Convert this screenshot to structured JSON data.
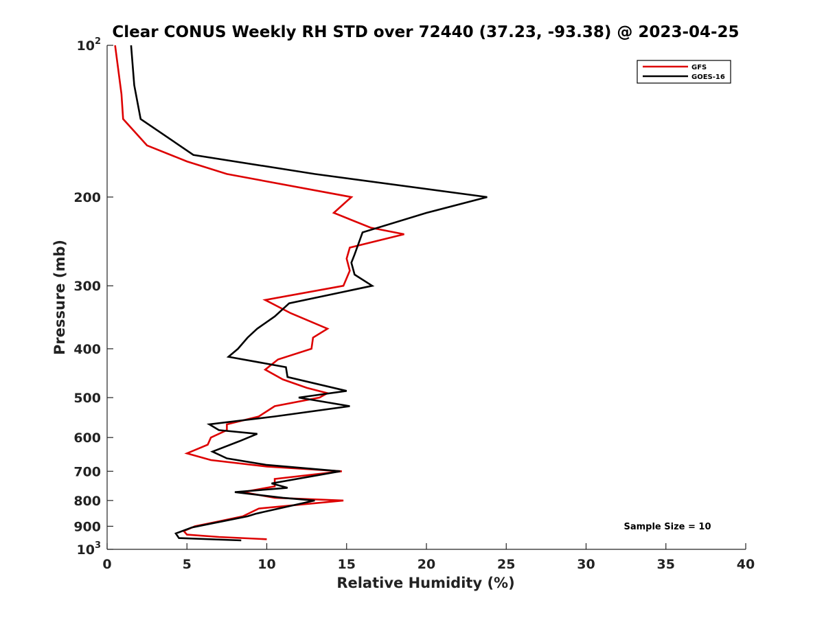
{
  "chart_data": {
    "type": "line",
    "title": "Clear CONUS Weekly RH STD over 72440 (37.23, -93.38) @ 2023-04-25",
    "xlabel": "Relative Humidity (%)",
    "ylabel": "Pressure (mb)",
    "xlim": [
      0,
      40
    ],
    "ylim": [
      100,
      1000
    ],
    "yscale": "log",
    "y_reversed": true,
    "grid": false,
    "legend_position": "top-right",
    "xticks": [
      0,
      5,
      10,
      15,
      20,
      25,
      30,
      35,
      40
    ],
    "xtick_labels": [
      "0",
      "5",
      "10",
      "15",
      "20",
      "25",
      "30",
      "35",
      "40"
    ],
    "yticks": [
      100,
      200,
      300,
      400,
      500,
      600,
      700,
      800,
      900,
      1000
    ],
    "ytick_labels": [
      {
        "base": "10",
        "exp": "2"
      },
      {
        "base": "200",
        "exp": ""
      },
      {
        "base": "300",
        "exp": ""
      },
      {
        "base": "400",
        "exp": ""
      },
      {
        "base": "500",
        "exp": ""
      },
      {
        "base": "600",
        "exp": ""
      },
      {
        "base": "700",
        "exp": ""
      },
      {
        "base": "800",
        "exp": ""
      },
      {
        "base": "900",
        "exp": ""
      },
      {
        "base": "10",
        "exp": "3"
      }
    ],
    "annotation": "Sample Size = 10",
    "series": [
      {
        "name": "GFS",
        "color": "#dd0000",
        "points": [
          [
            0.5,
            100
          ],
          [
            0.9,
            125
          ],
          [
            1.0,
            140
          ],
          [
            2.5,
            158
          ],
          [
            5.0,
            170
          ],
          [
            7.5,
            180
          ],
          [
            15.3,
            200
          ],
          [
            14.2,
            215
          ],
          [
            16.5,
            230
          ],
          [
            18.6,
            237
          ],
          [
            15.2,
            252
          ],
          [
            15.0,
            265
          ],
          [
            15.2,
            280
          ],
          [
            14.8,
            300
          ],
          [
            9.9,
            320
          ],
          [
            11.5,
            340
          ],
          [
            13.8,
            365
          ],
          [
            12.9,
            380
          ],
          [
            12.8,
            400
          ],
          [
            10.7,
            420
          ],
          [
            9.9,
            440
          ],
          [
            11.0,
            460
          ],
          [
            12.5,
            478
          ],
          [
            13.8,
            490
          ],
          [
            13.3,
            500
          ],
          [
            10.5,
            520
          ],
          [
            9.5,
            545
          ],
          [
            7.5,
            565
          ],
          [
            7.5,
            580
          ],
          [
            6.5,
            600
          ],
          [
            6.3,
            620
          ],
          [
            5.0,
            645
          ],
          [
            6.5,
            665
          ],
          [
            10.0,
            685
          ],
          [
            14.7,
            700
          ],
          [
            10.5,
            725
          ],
          [
            10.5,
            750
          ],
          [
            8.5,
            770
          ],
          [
            10.5,
            790
          ],
          [
            14.8,
            800
          ],
          [
            9.5,
            830
          ],
          [
            8.5,
            860
          ],
          [
            7.0,
            880
          ],
          [
            5.5,
            900
          ],
          [
            4.8,
            920
          ],
          [
            5.0,
            935
          ],
          [
            7.0,
            945
          ],
          [
            10.0,
            955
          ]
        ]
      },
      {
        "name": "GOES-16",
        "color": "#000000",
        "points": [
          [
            1.5,
            100
          ],
          [
            1.7,
            120
          ],
          [
            2.1,
            140
          ],
          [
            5.4,
            165
          ],
          [
            13.0,
            180
          ],
          [
            23.8,
            200
          ],
          [
            20.0,
            215
          ],
          [
            16.0,
            235
          ],
          [
            15.5,
            260
          ],
          [
            15.3,
            270
          ],
          [
            15.5,
            285
          ],
          [
            16.6,
            300
          ],
          [
            11.4,
            325
          ],
          [
            10.5,
            345
          ],
          [
            9.4,
            365
          ],
          [
            8.8,
            380
          ],
          [
            8.2,
            400
          ],
          [
            7.6,
            415
          ],
          [
            11.2,
            435
          ],
          [
            11.3,
            455
          ],
          [
            15.0,
            485
          ],
          [
            12.0,
            500
          ],
          [
            15.2,
            520
          ],
          [
            10.5,
            545
          ],
          [
            6.4,
            565
          ],
          [
            7.0,
            580
          ],
          [
            9.4,
            590
          ],
          [
            8.3,
            610
          ],
          [
            6.6,
            640
          ],
          [
            7.5,
            660
          ],
          [
            10.0,
            680
          ],
          [
            14.6,
            700
          ],
          [
            10.3,
            740
          ],
          [
            11.3,
            755
          ],
          [
            8.0,
            770
          ],
          [
            11.0,
            790
          ],
          [
            13.0,
            800
          ],
          [
            9.3,
            850
          ],
          [
            8.8,
            860
          ],
          [
            7.2,
            880
          ],
          [
            5.3,
            905
          ],
          [
            4.3,
            930
          ],
          [
            4.5,
            950
          ],
          [
            8.4,
            960
          ]
        ]
      }
    ]
  }
}
